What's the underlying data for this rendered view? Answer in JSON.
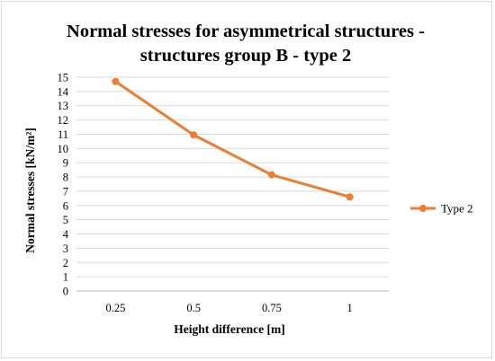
{
  "chart_data": {
    "type": "line",
    "title_lines": [
      "Normal stresses  for asymmetrical structures -",
      "structures group B - type 2"
    ],
    "xlabel": "Height difference [m]",
    "ylabel": "Normal stresses [kN/m²]",
    "categories": [
      "0.25",
      "0.5",
      "0.75",
      "1"
    ],
    "ylim": [
      0,
      15
    ],
    "yticks": [
      0,
      1,
      2,
      3,
      4,
      5,
      6,
      7,
      8,
      9,
      10,
      11,
      12,
      13,
      14,
      15
    ],
    "grid": true,
    "legend_position": "right",
    "series": [
      {
        "name": "Type 2",
        "values": [
          14.7,
          10.95,
          8.15,
          6.6
        ],
        "color": "#ed7d31"
      }
    ]
  }
}
